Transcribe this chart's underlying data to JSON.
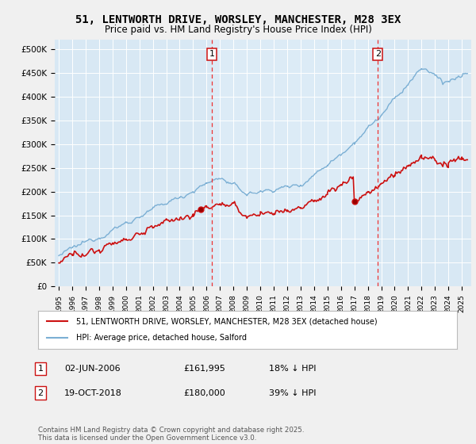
{
  "title": "51, LENTWORTH DRIVE, WORSLEY, MANCHESTER, M28 3EX",
  "subtitle": "Price paid vs. HM Land Registry's House Price Index (HPI)",
  "fig_bg_color": "#f0f0f0",
  "plot_bg_color": "#d8e8f4",
  "plot_bg_highlight": "#e0eef8",
  "grid_color": "#ffffff",
  "hpi_color": "#7bafd4",
  "price_color": "#cc1111",
  "dashed_line_color": "#ee3333",
  "marker1_label": "02-JUN-2006",
  "marker2_label": "19-OCT-2018",
  "marker1_price": 161995,
  "marker2_price": 180000,
  "marker1_pct": "18% ↓ HPI",
  "marker2_pct": "39% ↓ HPI",
  "legend_line1": "51, LENTWORTH DRIVE, WORSLEY, MANCHESTER, M28 3EX (detached house)",
  "legend_line2": "HPI: Average price, detached house, Salford",
  "footer": "Contains HM Land Registry data © Crown copyright and database right 2025.\nThis data is licensed under the Open Government Licence v3.0.",
  "ylim": [
    0,
    520000
  ],
  "yticks": [
    0,
    50000,
    100000,
    150000,
    200000,
    250000,
    300000,
    350000,
    400000,
    450000,
    500000
  ],
  "ytick_labels": [
    "£0",
    "£50K",
    "£100K",
    "£150K",
    "£200K",
    "£250K",
    "£300K",
    "£350K",
    "£400K",
    "£450K",
    "£500K"
  ],
  "year_start": 1995,
  "year_end": 2025
}
